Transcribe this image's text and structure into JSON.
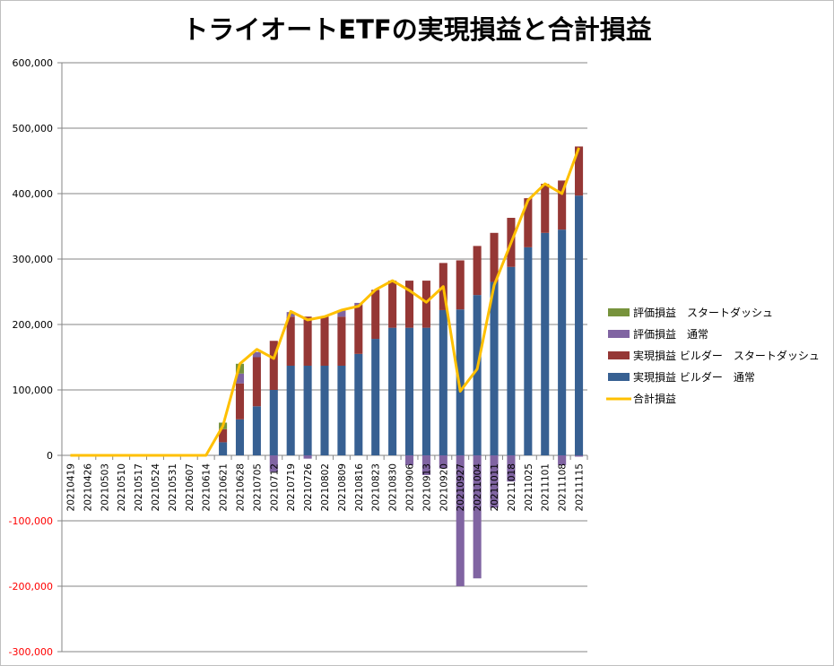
{
  "chart_data": {
    "type": "bar",
    "title": "トライオートETFの実現損益と合計損益",
    "ylim": [
      -300000,
      600000
    ],
    "yticks": [
      "-300,000",
      "-200,000",
      "-100,000",
      "0",
      "100,000",
      "200,000",
      "300,000",
      "400,000",
      "500,000",
      "600,000"
    ],
    "ytick_values": [
      -300000,
      -200000,
      -100000,
      0,
      100000,
      200000,
      300000,
      400000,
      500000,
      600000
    ],
    "grid": true,
    "legend_position": "right",
    "categories": [
      "20210419",
      "20210426",
      "20210503",
      "20210510",
      "20210517",
      "20210524",
      "20210531",
      "20210607",
      "20210614",
      "20210621",
      "20210628",
      "20210705",
      "20210712",
      "20210719",
      "20210726",
      "20210802",
      "20210809",
      "20210816",
      "20210823",
      "20210830",
      "20210906",
      "20210913",
      "20210920",
      "20210927",
      "20211004",
      "20211011",
      "20211018",
      "20211025",
      "20211101",
      "20211108",
      "20211115"
    ],
    "series": [
      {
        "name": "評価損益　スタートダッシュ",
        "kind": "bar",
        "color": "#77933c",
        "values": [
          0,
          0,
          0,
          0,
          0,
          0,
          0,
          0,
          0,
          10000,
          15000,
          0,
          0,
          0,
          0,
          0,
          0,
          0,
          0,
          0,
          0,
          0,
          0,
          0,
          0,
          0,
          0,
          0,
          0,
          0,
          0
        ]
      },
      {
        "name": "評価損益　通常",
        "kind": "bar",
        "color": "#8064a2",
        "values": [
          0,
          0,
          0,
          0,
          0,
          0,
          0,
          0,
          0,
          0,
          15000,
          8000,
          -25000,
          7000,
          -5000,
          0,
          10000,
          3000,
          0,
          0,
          -15000,
          -30000,
          -20000,
          -200000,
          -188000,
          -80000,
          -40000,
          0,
          0,
          -15000,
          -2000
        ]
      },
      {
        "name": "実現損益 ビルダー　スタートダッシュ",
        "kind": "bar",
        "color": "#953735",
        "values": [
          0,
          0,
          0,
          0,
          0,
          0,
          0,
          0,
          0,
          20000,
          55000,
          75000,
          75000,
          75000,
          75000,
          75000,
          75000,
          75000,
          75000,
          72000,
          72000,
          72000,
          72000,
          75000,
          75000,
          75000,
          75000,
          75000,
          75000,
          75000,
          75000
        ]
      },
      {
        "name": "実現損益 ビルダー　通常",
        "kind": "bar",
        "color": "#376092",
        "values": [
          0,
          0,
          0,
          0,
          0,
          0,
          0,
          0,
          0,
          20000,
          55000,
          75000,
          100000,
          137000,
          137000,
          137000,
          137000,
          155000,
          178000,
          195000,
          195000,
          195000,
          222000,
          223000,
          245000,
          265000,
          288000,
          318000,
          340000,
          345000,
          397000
        ]
      },
      {
        "name": "合計損益",
        "kind": "line",
        "color": "#ffc000",
        "values": [
          0,
          0,
          0,
          0,
          0,
          0,
          0,
          0,
          0,
          45000,
          140000,
          162000,
          148000,
          220000,
          207000,
          212000,
          222000,
          228000,
          253000,
          267000,
          252000,
          234000,
          258000,
          98000,
          132000,
          260000,
          325000,
          390000,
          415000,
          400000,
          470000
        ]
      }
    ]
  }
}
